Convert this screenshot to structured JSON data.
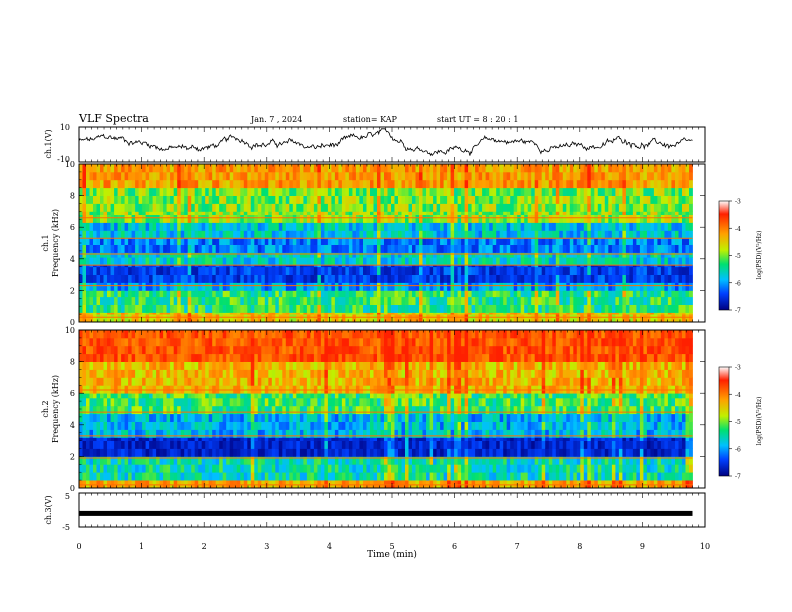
{
  "header": {
    "title": "VLF Spectra",
    "date": "Jan. 7 , 2024",
    "station": "station= KAP",
    "start": "start UT = 8 : 20 : 1"
  },
  "chart_data": [
    {
      "type": "line",
      "name": "ch1-waveform",
      "ylabel": "ch.1(V)",
      "ylim": [
        -10,
        10
      ],
      "yticks": [
        "10",
        "-10"
      ],
      "xlim": [
        0,
        10
      ],
      "data_until_min": 9.8
    },
    {
      "type": "heatmap",
      "name": "ch1-spectrogram",
      "ylabel_line1": "ch.1",
      "ylabel_line2": "Frequency (kHz)",
      "ylim": [
        0,
        10
      ],
      "yticks": [
        "0",
        "2",
        "4",
        "6",
        "8",
        "10"
      ],
      "xlim": [
        0,
        10
      ],
      "data_until_min": 9.8,
      "bands_khz": [
        {
          "from": 0.0,
          "to": 0.6,
          "level": -4.2
        },
        {
          "from": 0.6,
          "to": 2.0,
          "level": -5.0
        },
        {
          "from": 2.0,
          "to": 2.5,
          "level": -5.6
        },
        {
          "from": 2.5,
          "to": 3.6,
          "level": -6.2
        },
        {
          "from": 3.6,
          "to": 4.4,
          "level": -5.3
        },
        {
          "from": 4.4,
          "to": 5.3,
          "level": -5.8
        },
        {
          "from": 5.3,
          "to": 6.3,
          "level": -5.4
        },
        {
          "from": 6.3,
          "to": 7.0,
          "level": -4.6
        },
        {
          "from": 7.0,
          "to": 8.5,
          "level": -4.7
        },
        {
          "from": 8.5,
          "to": 10.0,
          "level": -3.9
        }
      ],
      "lines_khz": [
        0.3,
        2.3,
        3.6,
        4.3,
        5.3,
        6.6
      ]
    },
    {
      "type": "heatmap",
      "name": "ch2-spectrogram",
      "ylabel_line1": "ch.2",
      "ylabel_line2": "Frequency (kHz)",
      "ylim": [
        0,
        10
      ],
      "yticks": [
        "0",
        "2",
        "4",
        "6",
        "8",
        "10"
      ],
      "xlim": [
        0,
        10
      ],
      "data_until_min": 9.8,
      "bands_khz": [
        {
          "from": 0.0,
          "to": 0.5,
          "level": -4.0
        },
        {
          "from": 0.5,
          "to": 2.0,
          "level": -5.2
        },
        {
          "from": 2.0,
          "to": 3.2,
          "level": -6.4
        },
        {
          "from": 3.2,
          "to": 4.7,
          "level": -5.5
        },
        {
          "from": 4.7,
          "to": 6.0,
          "level": -4.9
        },
        {
          "from": 6.0,
          "to": 8.0,
          "level": -4.1
        },
        {
          "from": 8.0,
          "to": 10.0,
          "level": -3.4
        }
      ],
      "lines_khz": [
        0.2,
        1.9,
        3.3,
        4.8,
        6.2
      ]
    },
    {
      "type": "line",
      "name": "ch3-signal",
      "ylabel": "ch.3(V)",
      "ylim": [
        -5,
        5
      ],
      "yticks": [
        "5",
        "-5"
      ],
      "xlim": [
        0,
        10
      ],
      "constant_value": -1,
      "data_until_min": 9.8
    }
  ],
  "colorbars": [
    {
      "label": "log(PSD)(V²/Hz)",
      "range": [
        -7,
        -3
      ],
      "ticks": [
        "-3",
        "-4",
        "-5",
        "-6",
        "-7"
      ]
    },
    {
      "label": "log(PSD)(V²/Hz)",
      "range": [
        -7,
        -3
      ],
      "ticks": [
        "-3",
        "-4",
        "-5",
        "-6",
        "-7"
      ]
    }
  ],
  "x_axis": {
    "label": "Time (min)",
    "ticks": [
      "0",
      "1",
      "2",
      "3",
      "4",
      "5",
      "6",
      "7",
      "8",
      "9",
      "10"
    ]
  },
  "colors": {
    "c_m7": "#000080",
    "c_m6": "#0040ff",
    "c_m55": "#00c0ff",
    "c_m5": "#00e070",
    "c_m45": "#c0f000",
    "c_m4": "#ffa000",
    "c_m3": "#ff2000",
    "line": "#000000"
  }
}
